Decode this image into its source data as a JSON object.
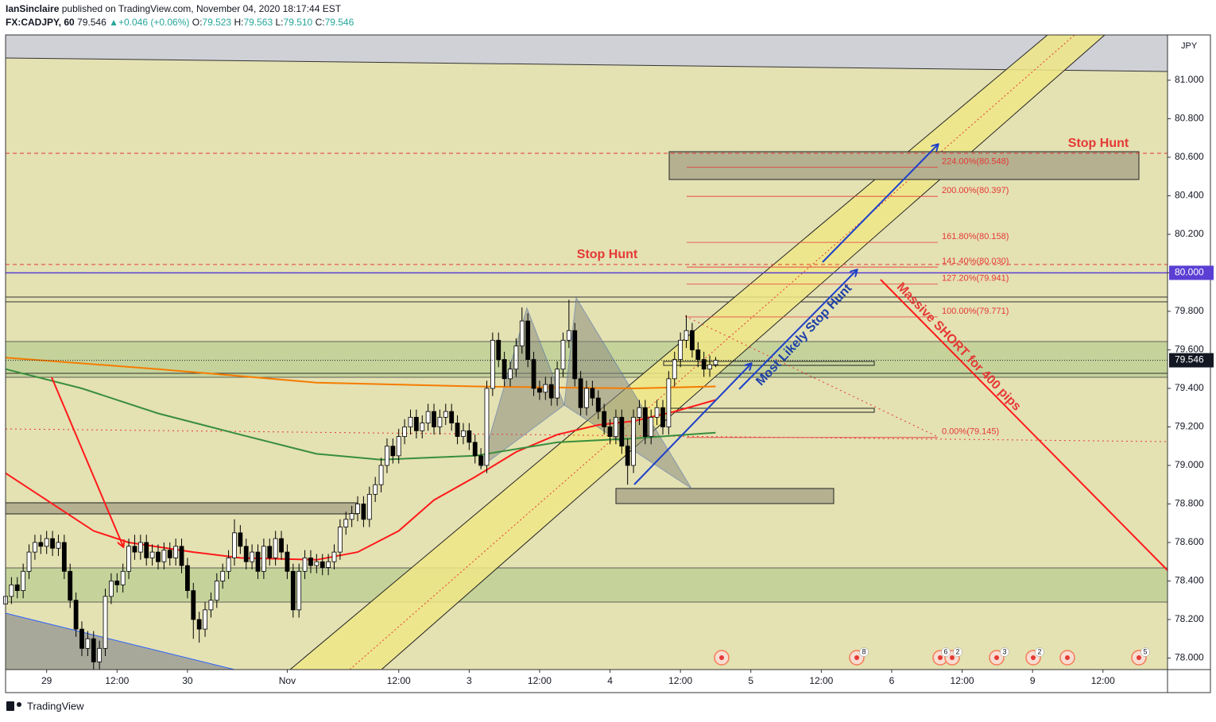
{
  "chart_data": {
    "type": "candlestick",
    "header": {
      "author": "IanSinclaire",
      "published": "published on TradingView.com, November 04, 2020 18:17:44 EST",
      "symbol": "FX:CADJPY, 60",
      "last": "79.546",
      "change_arrow": "▲",
      "change": "+0.046 (+0.06%)",
      "ohlc": [
        {
          "key": "O:",
          "value": "79.523"
        },
        {
          "key": "H:",
          "value": "79.563"
        },
        {
          "key": "L:",
          "value": "79.510"
        },
        {
          "key": "C:",
          "value": "79.546"
        }
      ]
    },
    "currency": "JPY",
    "footer": "TradingView",
    "xlim": [
      -7,
      191
    ],
    "xticks": [
      {
        "value": 0,
        "label": "29"
      },
      {
        "value": 12,
        "label": "12:00"
      },
      {
        "value": 24,
        "label": "30"
      },
      {
        "value": 41,
        "label": "Nov"
      },
      {
        "value": 60,
        "label": "12:00"
      },
      {
        "value": 72,
        "label": "3"
      },
      {
        "value": 84,
        "label": "12:00"
      },
      {
        "value": 96,
        "label": "4"
      },
      {
        "value": 108,
        "label": "12:00"
      },
      {
        "value": 120,
        "label": "5"
      },
      {
        "value": 132,
        "label": "12:00"
      },
      {
        "value": 144,
        "label": "6"
      },
      {
        "value": 156,
        "label": "12:00"
      },
      {
        "value": 168,
        "label": "9"
      },
      {
        "value": 180,
        "label": "12:00"
      }
    ],
    "ylim": [
      77.94,
      81.235
    ],
    "yticks": [
      {
        "value": 78,
        "label": "78.000"
      },
      {
        "value": 78.2,
        "label": "78.200"
      },
      {
        "value": 78.4,
        "label": "78.400"
      },
      {
        "value": 78.6,
        "label": "78.600"
      },
      {
        "value": 78.8,
        "label": "78.800"
      },
      {
        "value": 79,
        "label": "79.000"
      },
      {
        "value": 79.2,
        "label": "79.200"
      },
      {
        "value": 79.4,
        "label": "79.400"
      },
      {
        "value": 79.6,
        "label": "79.600"
      },
      {
        "value": 79.8,
        "label": "79.800"
      },
      {
        "value": 80,
        "label": "80.000"
      },
      {
        "value": 80.2,
        "label": "80.200"
      },
      {
        "value": 80.4,
        "label": "80.400"
      },
      {
        "value": 80.6,
        "label": "80.600"
      },
      {
        "value": 80.8,
        "label": "80.800"
      },
      {
        "value": 81,
        "label": "81.000"
      }
    ],
    "up_color": "#ffffff",
    "down_color": "#000000",
    "wick_color": "#000000",
    "x": [
      -7,
      -6,
      -5,
      -4,
      -3,
      -2,
      -1,
      0,
      1,
      2,
      3,
      4,
      5,
      6,
      7,
      8,
      9,
      10,
      11,
      12,
      13,
      14,
      15,
      16,
      17,
      18,
      19,
      20,
      21,
      22,
      23,
      24,
      25,
      26,
      27,
      28,
      29,
      30,
      31,
      32,
      33,
      34,
      35,
      36,
      37,
      38,
      39,
      40,
      41,
      42,
      43,
      44,
      45,
      46,
      47,
      48,
      49,
      50,
      51,
      52,
      53,
      54,
      55,
      56,
      57,
      58,
      59,
      60,
      61,
      62,
      63,
      64,
      65,
      66,
      67,
      68,
      69,
      70,
      71,
      72,
      73,
      74,
      75,
      76,
      77,
      78,
      79,
      80,
      81,
      82,
      83,
      84,
      85,
      86,
      87,
      88,
      89,
      90,
      91,
      92,
      93,
      94,
      95,
      96,
      97,
      98,
      99,
      100,
      101,
      102,
      103,
      104,
      105,
      106,
      107,
      108,
      109,
      110,
      111,
      112,
      113,
      114
    ],
    "candles": [
      [
        78.28,
        78.36,
        78.24,
        78.32
      ],
      [
        78.32,
        78.42,
        78.28,
        78.38
      ],
      [
        78.38,
        78.42,
        78.31,
        78.35
      ],
      [
        78.35,
        78.49,
        78.31,
        78.45
      ],
      [
        78.45,
        78.59,
        78.41,
        78.55
      ],
      [
        78.55,
        78.64,
        78.51,
        78.6
      ],
      [
        78.6,
        78.64,
        78.54,
        78.58
      ],
      [
        78.58,
        78.66,
        78.54,
        78.62
      ],
      [
        78.62,
        78.66,
        78.53,
        78.57
      ],
      [
        78.57,
        78.64,
        78.53,
        78.6
      ],
      [
        78.6,
        78.64,
        78.41,
        78.45
      ],
      [
        78.45,
        78.49,
        78.26,
        78.3
      ],
      [
        78.3,
        78.34,
        78.11,
        78.15
      ],
      [
        78.15,
        78.19,
        78.01,
        78.05
      ],
      [
        78.05,
        78.14,
        78.01,
        78.1
      ],
      [
        78.1,
        78.14,
        77.94,
        77.98
      ],
      [
        77.98,
        78.09,
        77.94,
        78.05
      ],
      [
        78.05,
        78.36,
        78.01,
        78.32
      ],
      [
        78.32,
        78.44,
        78.28,
        78.4
      ],
      [
        78.4,
        78.44,
        78.34,
        78.38
      ],
      [
        78.38,
        78.49,
        78.34,
        78.45
      ],
      [
        78.45,
        78.62,
        78.41,
        78.58
      ],
      [
        78.58,
        78.64,
        78.51,
        78.55
      ],
      [
        78.55,
        78.64,
        78.51,
        78.6
      ],
      [
        78.6,
        78.64,
        78.48,
        78.52
      ],
      [
        78.52,
        78.59,
        78.48,
        78.55
      ],
      [
        78.55,
        78.59,
        78.46,
        78.5
      ],
      [
        78.5,
        78.6,
        78.46,
        78.56
      ],
      [
        78.56,
        78.6,
        78.48,
        78.52
      ],
      [
        78.52,
        78.62,
        78.48,
        78.58
      ],
      [
        78.58,
        78.62,
        78.44,
        78.48
      ],
      [
        78.48,
        78.52,
        78.31,
        78.35
      ],
      [
        78.35,
        78.39,
        78.1,
        78.2
      ],
      [
        78.2,
        78.24,
        78.08,
        78.15
      ],
      [
        78.15,
        78.29,
        78.11,
        78.25
      ],
      [
        78.25,
        78.34,
        78.21,
        78.3
      ],
      [
        78.3,
        78.44,
        78.26,
        78.4
      ],
      [
        78.4,
        78.49,
        78.36,
        78.45
      ],
      [
        78.45,
        78.56,
        78.41,
        78.52
      ],
      [
        78.52,
        78.72,
        78.48,
        78.65
      ],
      [
        78.65,
        78.69,
        78.54,
        78.58
      ],
      [
        78.58,
        78.62,
        78.46,
        78.5
      ],
      [
        78.5,
        78.59,
        78.46,
        78.55
      ],
      [
        78.55,
        78.59,
        78.41,
        78.45
      ],
      [
        78.45,
        78.62,
        78.41,
        78.58
      ],
      [
        78.58,
        78.62,
        78.48,
        78.52
      ],
      [
        78.52,
        78.66,
        78.48,
        78.62
      ],
      [
        78.62,
        78.66,
        78.51,
        78.55
      ],
      [
        78.55,
        78.59,
        78.41,
        78.45
      ],
      [
        78.45,
        78.49,
        78.21,
        78.25
      ],
      [
        78.25,
        78.49,
        78.21,
        78.45
      ],
      [
        78.45,
        78.56,
        78.41,
        78.52
      ],
      [
        78.52,
        78.56,
        78.44,
        78.48
      ],
      [
        78.48,
        78.54,
        78.44,
        78.5
      ],
      [
        78.5,
        78.54,
        78.43,
        78.47
      ],
      [
        78.47,
        78.54,
        78.43,
        78.5
      ],
      [
        78.5,
        78.59,
        78.46,
        78.55
      ],
      [
        78.55,
        78.72,
        78.51,
        78.68
      ],
      [
        78.68,
        78.76,
        78.64,
        78.72
      ],
      [
        78.72,
        78.79,
        78.68,
        78.75
      ],
      [
        78.75,
        78.84,
        78.71,
        78.8
      ],
      [
        78.8,
        78.84,
        78.68,
        78.72
      ],
      [
        78.72,
        78.89,
        78.68,
        78.85
      ],
      [
        78.85,
        78.94,
        78.81,
        78.9
      ],
      [
        78.9,
        79.04,
        78.86,
        79.0
      ],
      [
        79.0,
        79.14,
        78.96,
        79.1
      ],
      [
        79.1,
        79.14,
        79.01,
        79.05
      ],
      [
        79.05,
        79.19,
        79.01,
        79.15
      ],
      [
        79.15,
        79.24,
        79.11,
        79.2
      ],
      [
        79.2,
        79.29,
        79.16,
        79.25
      ],
      [
        79.25,
        79.29,
        79.14,
        79.18
      ],
      [
        79.18,
        79.26,
        79.14,
        79.22
      ],
      [
        79.22,
        79.32,
        79.18,
        79.28
      ],
      [
        79.28,
        79.32,
        79.16,
        79.2
      ],
      [
        79.2,
        79.29,
        79.16,
        79.25
      ],
      [
        79.25,
        79.32,
        79.21,
        79.28
      ],
      [
        79.28,
        79.32,
        79.18,
        79.22
      ],
      [
        79.22,
        79.26,
        79.11,
        79.15
      ],
      [
        79.15,
        79.22,
        79.11,
        79.18
      ],
      [
        79.18,
        79.22,
        79.08,
        79.12
      ],
      [
        79.12,
        79.16,
        79.01,
        79.05
      ],
      [
        79.05,
        79.09,
        78.98,
        79.0
      ],
      [
        79.0,
        79.44,
        78.96,
        79.4
      ],
      [
        79.4,
        79.69,
        79.36,
        79.65
      ],
      [
        79.65,
        79.69,
        79.51,
        79.55
      ],
      [
        79.55,
        79.59,
        79.41,
        79.45
      ],
      [
        79.45,
        79.54,
        79.41,
        79.5
      ],
      [
        79.5,
        79.66,
        79.46,
        79.62
      ],
      [
        79.62,
        79.82,
        79.58,
        79.75
      ],
      [
        79.75,
        79.79,
        79.51,
        79.55
      ],
      [
        79.55,
        79.59,
        79.36,
        79.4
      ],
      [
        79.4,
        79.44,
        79.34,
        79.38
      ],
      [
        79.38,
        79.46,
        79.34,
        79.42
      ],
      [
        79.42,
        79.46,
        79.31,
        79.35
      ],
      [
        79.35,
        79.54,
        79.31,
        79.5
      ],
      [
        79.5,
        79.69,
        79.46,
        79.65
      ],
      [
        79.65,
        79.86,
        79.61,
        79.7
      ],
      [
        79.7,
        79.74,
        79.41,
        79.45
      ],
      [
        79.45,
        79.49,
        79.26,
        79.3
      ],
      [
        79.3,
        79.44,
        79.26,
        79.4
      ],
      [
        79.4,
        79.44,
        79.31,
        79.35
      ],
      [
        79.35,
        79.39,
        79.24,
        79.28
      ],
      [
        79.28,
        79.32,
        79.16,
        79.2
      ],
      [
        79.2,
        79.24,
        79.11,
        79.15
      ],
      [
        79.15,
        79.29,
        79.11,
        79.25
      ],
      [
        79.25,
        79.29,
        79.06,
        79.1
      ],
      [
        79.1,
        79.14,
        78.9,
        79.0
      ],
      [
        79.0,
        79.29,
        78.96,
        79.25
      ],
      [
        79.25,
        79.34,
        79.21,
        79.3
      ],
      [
        79.3,
        79.34,
        79.11,
        79.15
      ],
      [
        79.15,
        79.29,
        79.11,
        79.25
      ],
      [
        79.25,
        79.34,
        79.21,
        79.3
      ],
      [
        79.3,
        79.34,
        79.16,
        79.2
      ],
      [
        79.2,
        79.49,
        79.16,
        79.45
      ],
      [
        79.45,
        79.59,
        79.41,
        79.55
      ],
      [
        79.55,
        79.69,
        79.51,
        79.65
      ],
      [
        79.65,
        79.78,
        79.61,
        79.7
      ],
      [
        79.7,
        79.74,
        79.56,
        79.6
      ],
      [
        79.6,
        79.64,
        79.51,
        79.55
      ],
      [
        79.55,
        79.59,
        79.46,
        79.5
      ],
      [
        79.5,
        79.57,
        79.46,
        79.523
      ],
      [
        79.523,
        79.563,
        79.51,
        79.546
      ]
    ],
    "moving_averages": [
      {
        "color": "#ff1a1a",
        "width": 2,
        "x": [
          -7,
          0,
          8,
          14,
          25,
          33,
          46,
          53,
          60,
          66,
          73,
          80,
          87,
          94,
          100,
          107,
          114
        ],
        "values": [
          78.96,
          78.82,
          78.66,
          78.6,
          78.55,
          78.52,
          78.51,
          78.55,
          78.66,
          78.82,
          78.94,
          79.07,
          79.16,
          79.21,
          79.23,
          79.28,
          79.34
        ]
      },
      {
        "color": "#f57c00",
        "width": 2,
        "x": [
          -7,
          19,
          46,
          73,
          100,
          114
        ],
        "values": [
          79.56,
          79.5,
          79.43,
          79.41,
          79.4,
          79.41
        ]
      },
      {
        "color": "#388e3c",
        "width": 2,
        "x": [
          -7,
          6,
          19,
          33,
          46,
          57,
          73,
          87,
          100,
          114
        ],
        "values": [
          79.5,
          79.4,
          79.27,
          79.16,
          79.06,
          79.03,
          79.05,
          79.12,
          79.14,
          79.17
        ]
      }
    ],
    "fib_levels": [
      {
        "value": 80.548,
        "label": "224.00%(80.548)"
      },
      {
        "value": 80.397,
        "label": "200.00%(80.397)"
      },
      {
        "value": 80.158,
        "label": "161.80%(80.158)"
      },
      {
        "value": 80.03,
        "label": "141.40%(80.030)"
      },
      {
        "value": 79.941,
        "label": "127.20%(79.941)"
      },
      {
        "value": 79.771,
        "label": "100.00%(79.771)"
      },
      {
        "value": 79.145,
        "label": "0.00%(79.145)"
      }
    ],
    "fib_color": "#e53935",
    "level_line": {
      "value": 80,
      "label": "80.000",
      "color": "#5b3fd4"
    },
    "last_price": {
      "value": 79.546,
      "label": "79.546"
    },
    "annotations": [
      "Stop Hunt",
      "Stop Hunt",
      "Most Likely Stop Hunt",
      "Massive SHORT for 400 pips"
    ],
    "event_badges": [
      "8",
      "6",
      "2",
      "3",
      "2",
      "5"
    ]
  }
}
